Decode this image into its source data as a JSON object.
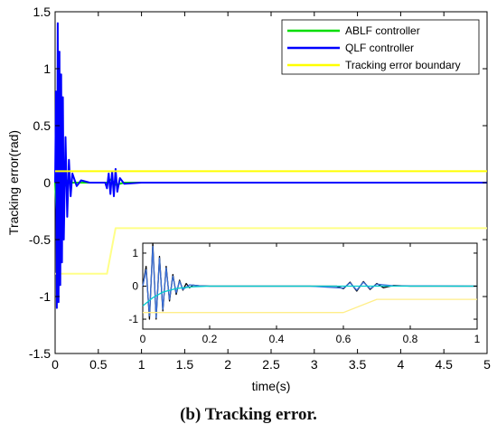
{
  "caption": "(b) Tracking error.",
  "chart_data": [
    {
      "type": "line",
      "xlabel": "time(s)",
      "ylabel": "Tracking error(rad)",
      "xlim": [
        0,
        5
      ],
      "ylim": [
        -1.5,
        1.5
      ],
      "xticks": [
        0,
        0.5,
        1,
        1.5,
        2,
        2.5,
        3,
        3.5,
        4,
        4.5,
        5
      ],
      "xtick_labels": [
        "0",
        "0.5",
        "1",
        "1.5",
        "2",
        "2.5",
        "3",
        "3.5",
        "4",
        "4.5",
        "5"
      ],
      "yticks": [
        -1.5,
        -1,
        -0.5,
        0,
        0.5,
        1,
        1.5
      ],
      "ytick_labels": [
        "-1.5",
        "-1",
        "-0.5",
        "0",
        "0.5",
        "1",
        "1.5"
      ],
      "legend_position": "top-right",
      "series": [
        {
          "name": "ABLF controller",
          "color": "#00dd00",
          "x": [
            0,
            0.02,
            0.04,
            0.06,
            0.08,
            0.1,
            0.15,
            0.2,
            0.3,
            0.5,
            0.6,
            0.65,
            0.7,
            0.8,
            1,
            2,
            3,
            4,
            5
          ],
          "values": [
            0,
            -0.3,
            0.3,
            -0.15,
            0.1,
            -0.05,
            0.02,
            0,
            0,
            0,
            0,
            0.03,
            -0.02,
            0,
            0,
            0,
            0,
            0,
            0
          ]
        },
        {
          "name": "QLF controller",
          "color": "#0000ff",
          "x": [
            0,
            0.01,
            0.02,
            0.03,
            0.04,
            0.05,
            0.06,
            0.07,
            0.08,
            0.09,
            0.1,
            0.12,
            0.14,
            0.16,
            0.18,
            0.2,
            0.25,
            0.3,
            0.4,
            0.5,
            0.58,
            0.6,
            0.62,
            0.64,
            0.66,
            0.68,
            0.7,
            0.72,
            0.75,
            0.8,
            1,
            2,
            3,
            4,
            5
          ],
          "values": [
            0,
            0.8,
            -1.1,
            1.4,
            -1.05,
            1.15,
            -0.9,
            0.95,
            -0.7,
            0.75,
            -0.5,
            0.4,
            -0.3,
            0.2,
            -0.12,
            0.08,
            -0.03,
            0.02,
            0,
            0,
            0,
            -0.05,
            0.08,
            -0.1,
            0.1,
            -0.12,
            0.12,
            -0.08,
            0.04,
            -0.01,
            0,
            0,
            0,
            0,
            0
          ]
        },
        {
          "name": "Tracking error boundary",
          "color": "#ffff00",
          "x": [
            0,
            5
          ],
          "values": [
            0.1,
            0.1
          ]
        }
      ],
      "extra_lines": [
        {
          "name": "Lower boundary",
          "color": "#ffff88",
          "x": [
            0,
            0.6,
            0.7,
            5
          ],
          "values": [
            -0.8,
            -0.8,
            -0.4,
            -0.4
          ]
        }
      ]
    },
    {
      "type": "line",
      "xlim": [
        0,
        1
      ],
      "ylim": [
        -1.3,
        1.3
      ],
      "xticks": [
        0,
        0.2,
        0.4,
        0.6,
        0.8,
        1
      ],
      "xtick_labels": [
        "0",
        "0.2",
        "0.4",
        "0.6",
        "0.8",
        "1"
      ],
      "yticks": [
        -1,
        0,
        1
      ],
      "ytick_labels": [
        "-1",
        "0",
        "1"
      ],
      "series": [
        {
          "color": "#000000",
          "x": [
            0,
            0.01,
            0.02,
            0.03,
            0.04,
            0.05,
            0.06,
            0.07,
            0.08,
            0.09,
            0.1,
            0.11,
            0.12,
            0.13,
            0.14,
            0.15,
            0.17,
            0.2,
            0.3,
            0.5,
            0.58,
            0.6,
            0.62,
            0.64,
            0.66,
            0.68,
            0.7,
            0.72,
            0.75,
            0.8,
            1
          ],
          "values": [
            0,
            0.6,
            -1.0,
            1.3,
            -1.0,
            0.9,
            -0.75,
            0.6,
            -0.45,
            0.35,
            -0.25,
            0.18,
            -0.12,
            0.08,
            -0.05,
            0.03,
            0.01,
            0,
            0,
            0,
            0,
            -0.08,
            0.12,
            -0.15,
            0.14,
            -0.1,
            0.08,
            -0.05,
            0.02,
            0,
            0
          ]
        },
        {
          "color": "#3a6fd8",
          "x": [
            0,
            0.01,
            0.02,
            0.03,
            0.04,
            0.05,
            0.06,
            0.07,
            0.08,
            0.09,
            0.1,
            0.11,
            0.12,
            0.14,
            0.17,
            0.2,
            0.5,
            0.6,
            0.62,
            0.64,
            0.66,
            0.68,
            0.7,
            0.75,
            1
          ],
          "values": [
            0,
            0.5,
            -0.9,
            1.2,
            -0.95,
            0.85,
            -0.7,
            0.55,
            -0.4,
            0.3,
            -0.2,
            0.15,
            -0.1,
            0.04,
            0.01,
            0,
            0,
            -0.06,
            0.1,
            -0.12,
            0.12,
            -0.08,
            0.06,
            0.01,
            0
          ]
        },
        {
          "color": "#00cccc",
          "x": [
            0,
            0.03,
            0.06,
            0.1,
            0.15,
            0.2,
            1
          ],
          "values": [
            -0.6,
            -0.35,
            -0.18,
            -0.07,
            -0.02,
            0,
            0
          ]
        },
        {
          "color": "#ffee88",
          "x": [
            0,
            0.6,
            0.7,
            1
          ],
          "values": [
            -0.8,
            -0.8,
            -0.4,
            -0.4
          ]
        }
      ]
    }
  ]
}
